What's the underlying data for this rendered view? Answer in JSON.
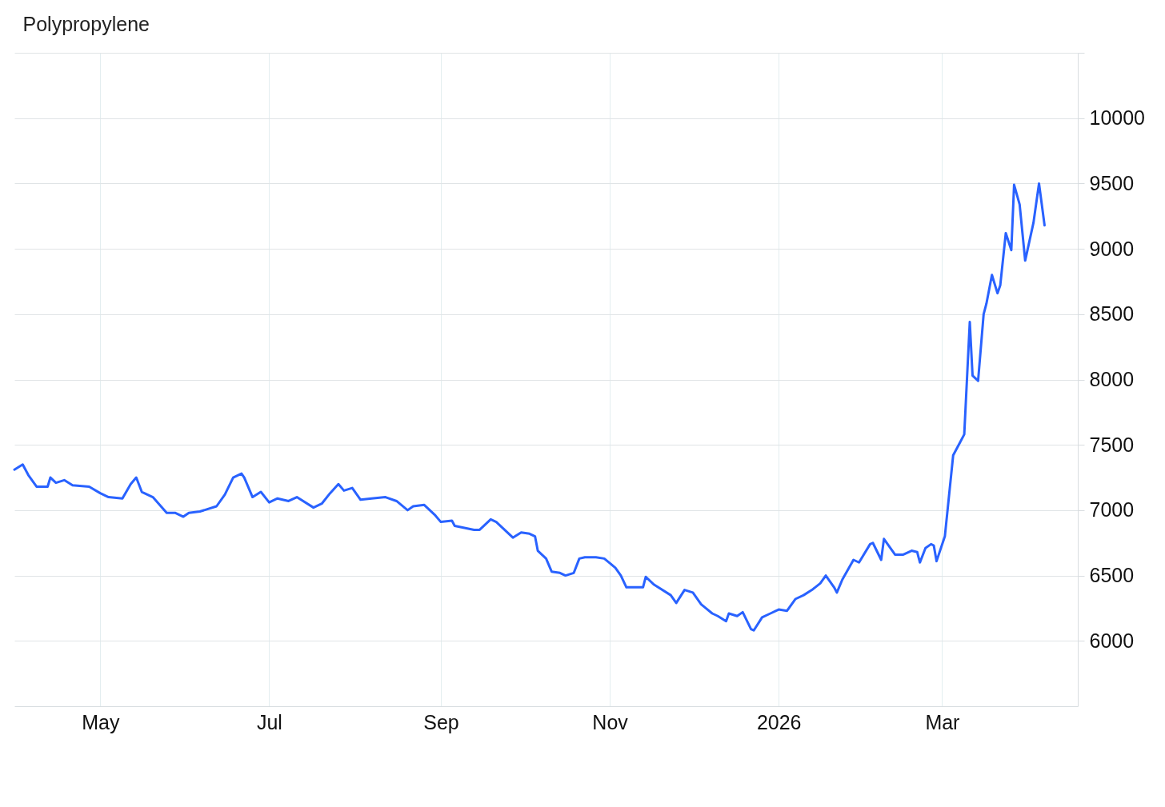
{
  "chart_data": {
    "type": "line",
    "title": "Polypropylene",
    "x": [
      "2025-03-31",
      "2025-04-03",
      "2025-04-05",
      "2025-04-08",
      "2025-04-12",
      "2025-04-13",
      "2025-04-15",
      "2025-04-18",
      "2025-04-21",
      "2025-04-27",
      "2025-05-01",
      "2025-05-04",
      "2025-05-09",
      "2025-05-12",
      "2025-05-14",
      "2025-05-16",
      "2025-05-20",
      "2025-05-25",
      "2025-05-28",
      "2025-05-31",
      "2025-06-02",
      "2025-06-06",
      "2025-06-12",
      "2025-06-15",
      "2025-06-18",
      "2025-06-21",
      "2025-06-22",
      "2025-06-25",
      "2025-06-28",
      "2025-07-01",
      "2025-07-04",
      "2025-07-08",
      "2025-07-11",
      "2025-07-17",
      "2025-07-20",
      "2025-07-23",
      "2025-07-26",
      "2025-07-28",
      "2025-07-31",
      "2025-08-03",
      "2025-08-07",
      "2025-08-12",
      "2025-08-16",
      "2025-08-20",
      "2025-08-22",
      "2025-08-26",
      "2025-08-30",
      "2025-09-01",
      "2025-09-05",
      "2025-09-06",
      "2025-09-13",
      "2025-09-15",
      "2025-09-19",
      "2025-09-21",
      "2025-09-27",
      "2025-09-30",
      "2025-10-03",
      "2025-10-05",
      "2025-10-06",
      "2025-10-09",
      "2025-10-11",
      "2025-10-14",
      "2025-10-16",
      "2025-10-19",
      "2025-10-21",
      "2025-10-23",
      "2025-10-27",
      "2025-10-30",
      "2025-11-03",
      "2025-11-05",
      "2025-11-07",
      "2025-11-13",
      "2025-11-14",
      "2025-11-17",
      "2025-11-23",
      "2025-11-25",
      "2025-11-28",
      "2025-12-01",
      "2025-12-04",
      "2025-12-08",
      "2025-12-10",
      "2025-12-13",
      "2025-12-14",
      "2025-12-17",
      "2025-12-19",
      "2025-12-22",
      "2025-12-23",
      "2025-12-26",
      "2025-12-29",
      "2026-01-01",
      "2026-01-04",
      "2026-01-07",
      "2026-01-10",
      "2026-01-13",
      "2026-01-16",
      "2026-01-18",
      "2026-01-21",
      "2026-01-22",
      "2026-01-24",
      "2026-01-28",
      "2026-01-30",
      "2026-02-03",
      "2026-02-04",
      "2026-02-07",
      "2026-02-08",
      "2026-02-12",
      "2026-02-15",
      "2026-02-18",
      "2026-02-20",
      "2026-02-21",
      "2026-02-23",
      "2026-02-25",
      "2026-02-26",
      "2026-02-27",
      "2026-03-02",
      "2026-03-05",
      "2026-03-07",
      "2026-03-09",
      "2026-03-11",
      "2026-03-12",
      "2026-03-14",
      "2026-03-16",
      "2026-03-17",
      "2026-03-19",
      "2026-03-21",
      "2026-03-22",
      "2026-03-24",
      "2026-03-26",
      "2026-03-27",
      "2026-03-29",
      "2026-03-31",
      "2026-04-03",
      "2026-04-05",
      "2026-04-07"
    ],
    "series": [
      {
        "color": "#2962ff",
        "values": [
          7310,
          7350,
          7270,
          7180,
          7180,
          7250,
          7210,
          7230,
          7190,
          7180,
          7130,
          7100,
          7090,
          7200,
          7250,
          7140,
          7100,
          6980,
          6980,
          6950,
          6980,
          6990,
          7030,
          7120,
          7250,
          7280,
          7250,
          7100,
          7140,
          7060,
          7090,
          7070,
          7100,
          7020,
          7050,
          7130,
          7200,
          7150,
          7170,
          7080,
          7090,
          7100,
          7070,
          7000,
          7030,
          7040,
          6960,
          6910,
          6920,
          6880,
          6850,
          6850,
          6930,
          6910,
          6790,
          6830,
          6820,
          6800,
          6690,
          6630,
          6530,
          6520,
          6500,
          6520,
          6630,
          6640,
          6640,
          6630,
          6560,
          6500,
          6410,
          6410,
          6490,
          6430,
          6350,
          6290,
          6390,
          6370,
          6280,
          6210,
          6190,
          6150,
          6210,
          6190,
          6220,
          6090,
          6080,
          6180,
          6210,
          6240,
          6230,
          6320,
          6350,
          6390,
          6440,
          6500,
          6410,
          6370,
          6470,
          6620,
          6600,
          6740,
          6750,
          6620,
          6780,
          6660,
          6660,
          6690,
          6680,
          6600,
          6710,
          6740,
          6730,
          6610,
          6800,
          7420,
          7500,
          7580,
          8440,
          8030,
          7990,
          8500,
          8580,
          8800,
          8660,
          8720,
          9120,
          8990,
          9490,
          9340,
          8910,
          9200,
          9500,
          9180
        ]
      }
    ],
    "xlim": [
      "2025-03-31",
      "2026-04-19"
    ],
    "xticks": [
      {
        "value": "2025-05-01",
        "label": "May"
      },
      {
        "value": "2025-07-01",
        "label": "Jul"
      },
      {
        "value": "2025-09-01",
        "label": "Sep"
      },
      {
        "value": "2025-11-01",
        "label": "Nov"
      },
      {
        "value": "2026-01-01",
        "label": "2026"
      },
      {
        "value": "2026-03-01",
        "label": "Mar"
      }
    ],
    "ylim": [
      5500,
      10500
    ],
    "yticks": [
      6000,
      6500,
      7000,
      7500,
      8000,
      8500,
      9000,
      9500,
      10000,
      {
        "value": 10500,
        "label": null
      }
    ],
    "grid": true,
    "line_style": "solid",
    "marker": "none"
  }
}
